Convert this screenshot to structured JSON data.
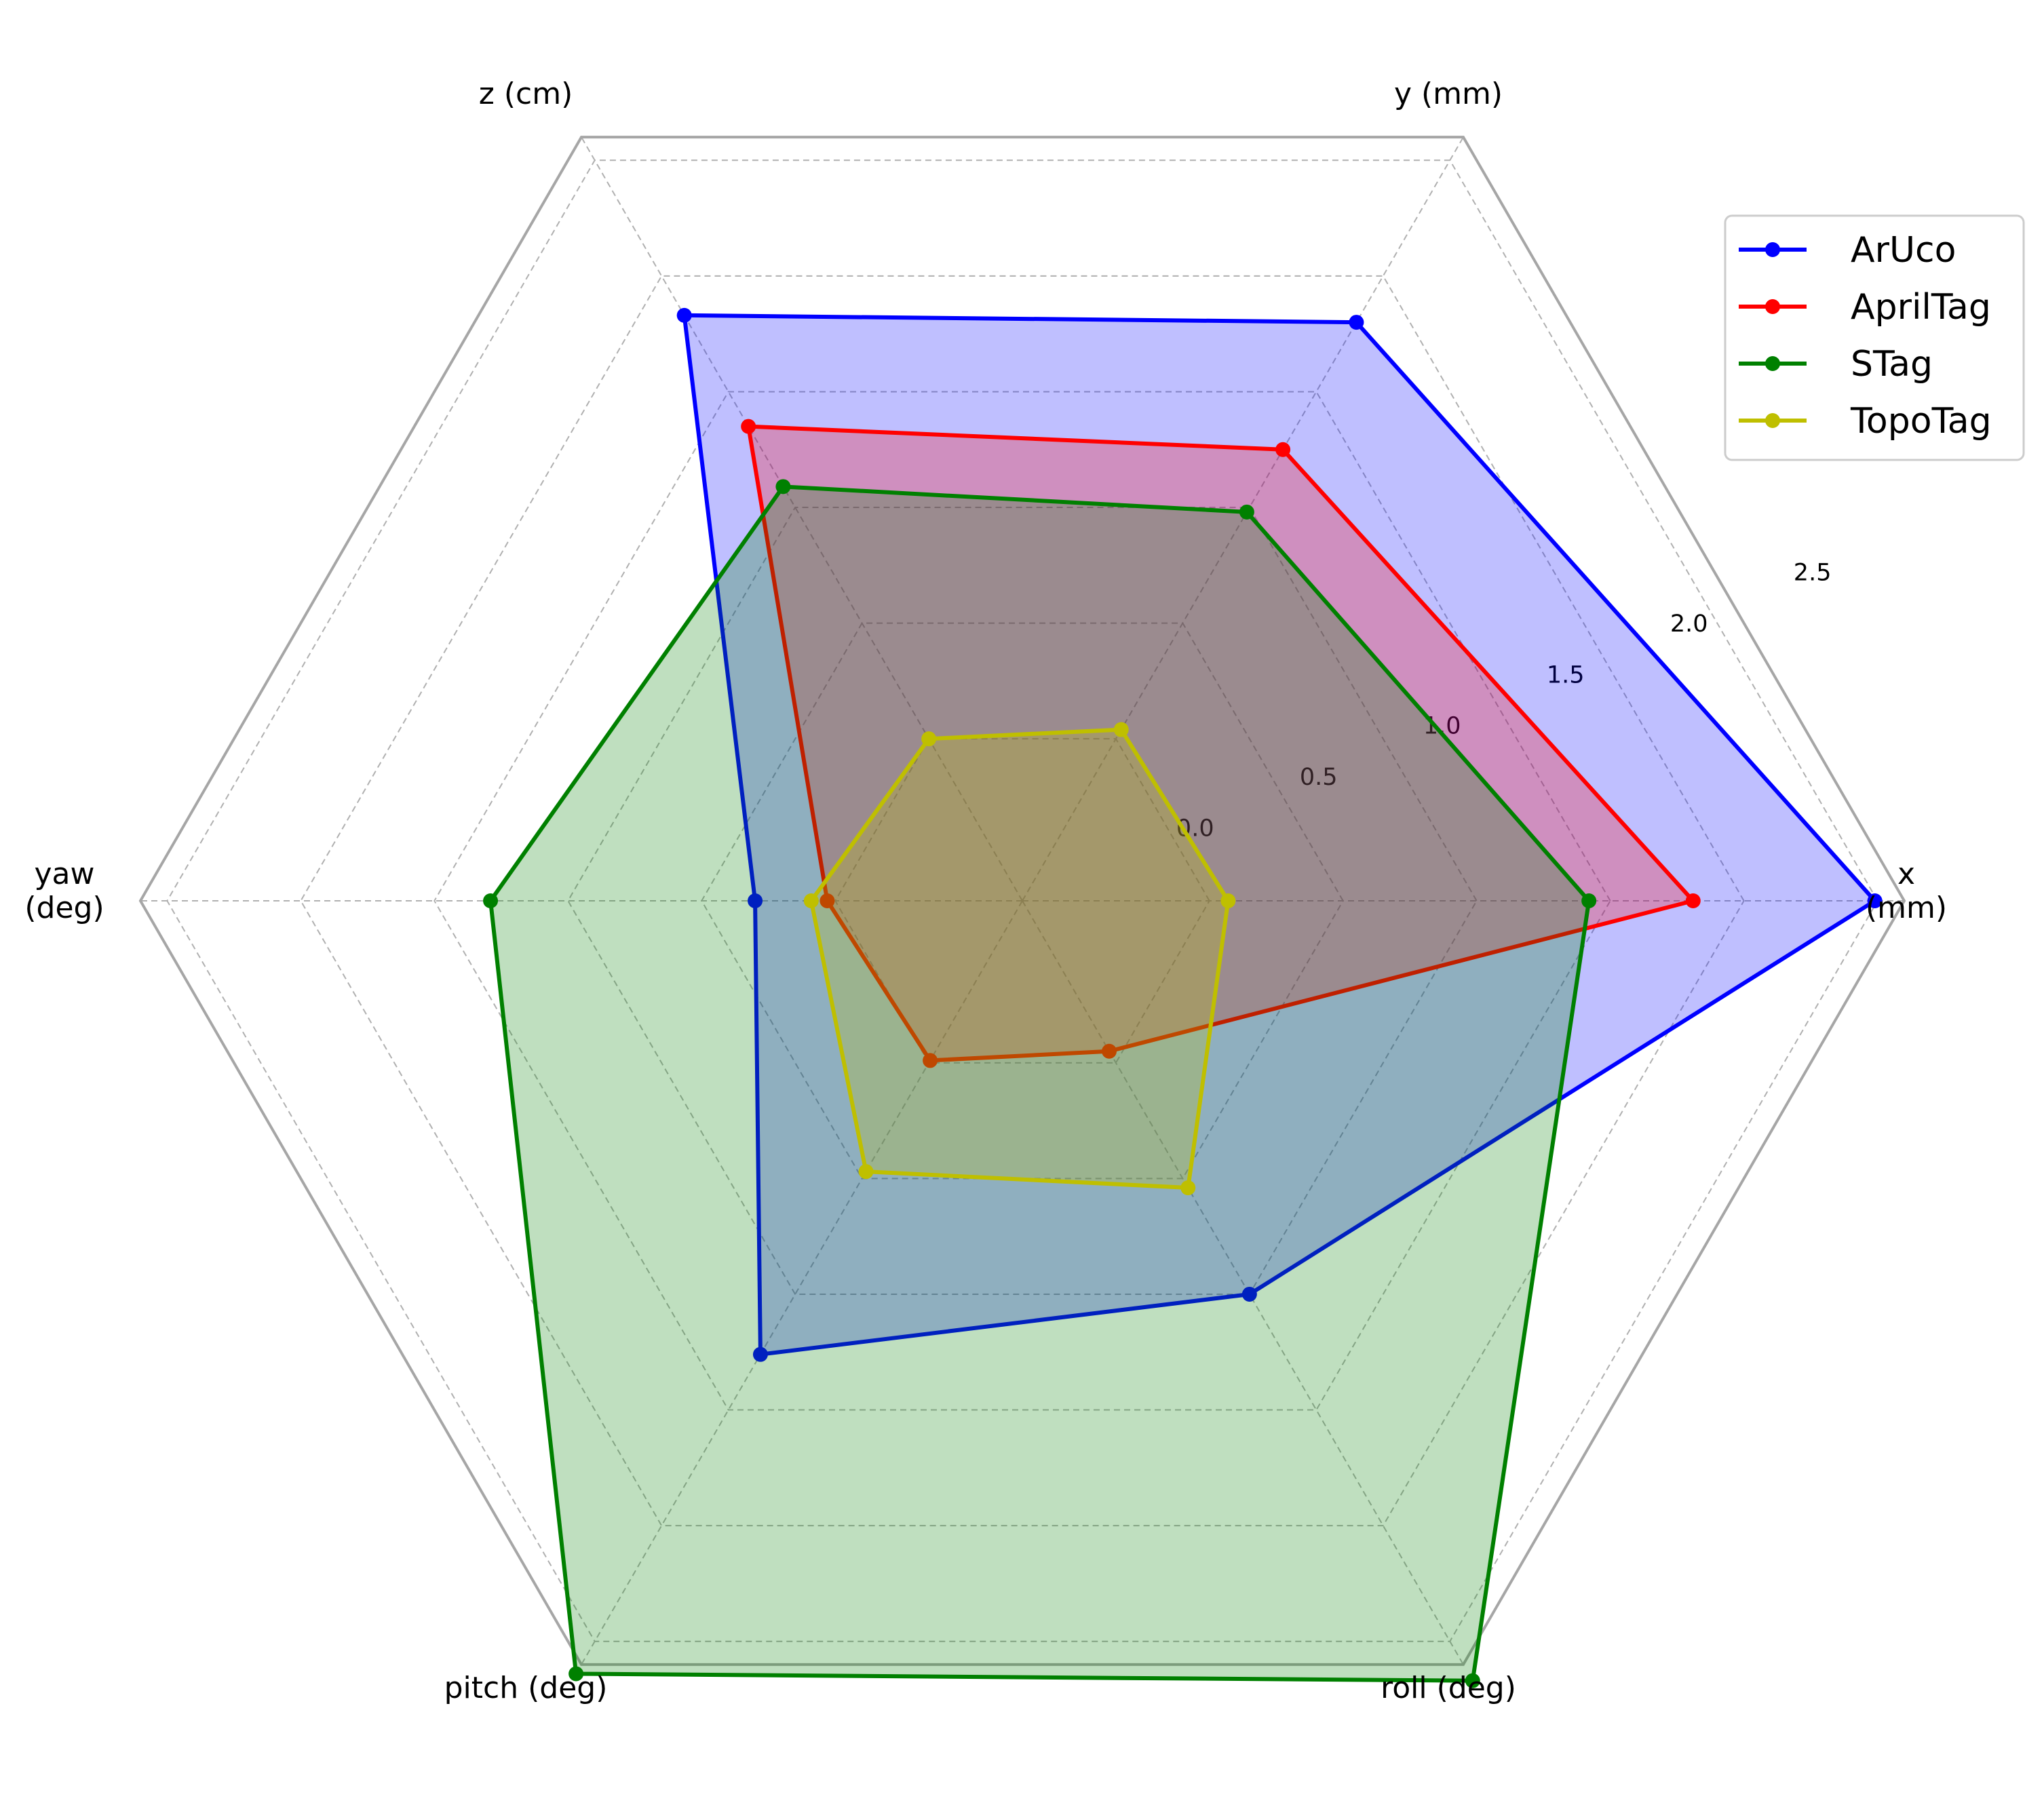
{
  "chart_data": {
    "type": "radar",
    "axes": [
      "x (mm)",
      "y (mm)",
      "z (cm)",
      "yaw (deg)",
      "pitch (deg)",
      "roll (deg)"
    ],
    "axis_label_lines": [
      [
        "x",
        "(mm)"
      ],
      [
        "y (mm)"
      ],
      [
        "z (cm)"
      ],
      [
        "yaw",
        "(deg)"
      ],
      [
        "pitch (deg)"
      ],
      [
        "roll (deg)"
      ]
    ],
    "r_ticks": [
      "0.0",
      "0.5",
      "1.0",
      "1.5",
      "2.0",
      "2.5"
    ],
    "rlim": [
      -0.7,
      2.6
    ],
    "grid": true,
    "legend_position": "top-right",
    "series": [
      {
        "name": "ArUco",
        "color": "#0000ff",
        "fill_alpha": 0.25,
        "values": [
          2.49,
          1.8,
          1.83,
          0.3,
          1.26,
          1.0
        ]
      },
      {
        "name": "AprilTag",
        "color": "#ff0000",
        "fill_alpha": 0.25,
        "values": [
          1.81,
          1.25,
          1.35,
          0.03,
          -0.01,
          -0.05
        ]
      },
      {
        "name": "STag",
        "color": "#008000",
        "fill_alpha": 0.25,
        "values": [
          1.42,
          0.98,
          1.09,
          1.29,
          2.64,
          2.67
        ]
      },
      {
        "name": "TopoTag",
        "color": "#bfbf00",
        "fill_alpha": 0.25,
        "values": [
          0.07,
          0.04,
          0.0,
          0.09,
          0.47,
          0.54
        ]
      }
    ]
  }
}
